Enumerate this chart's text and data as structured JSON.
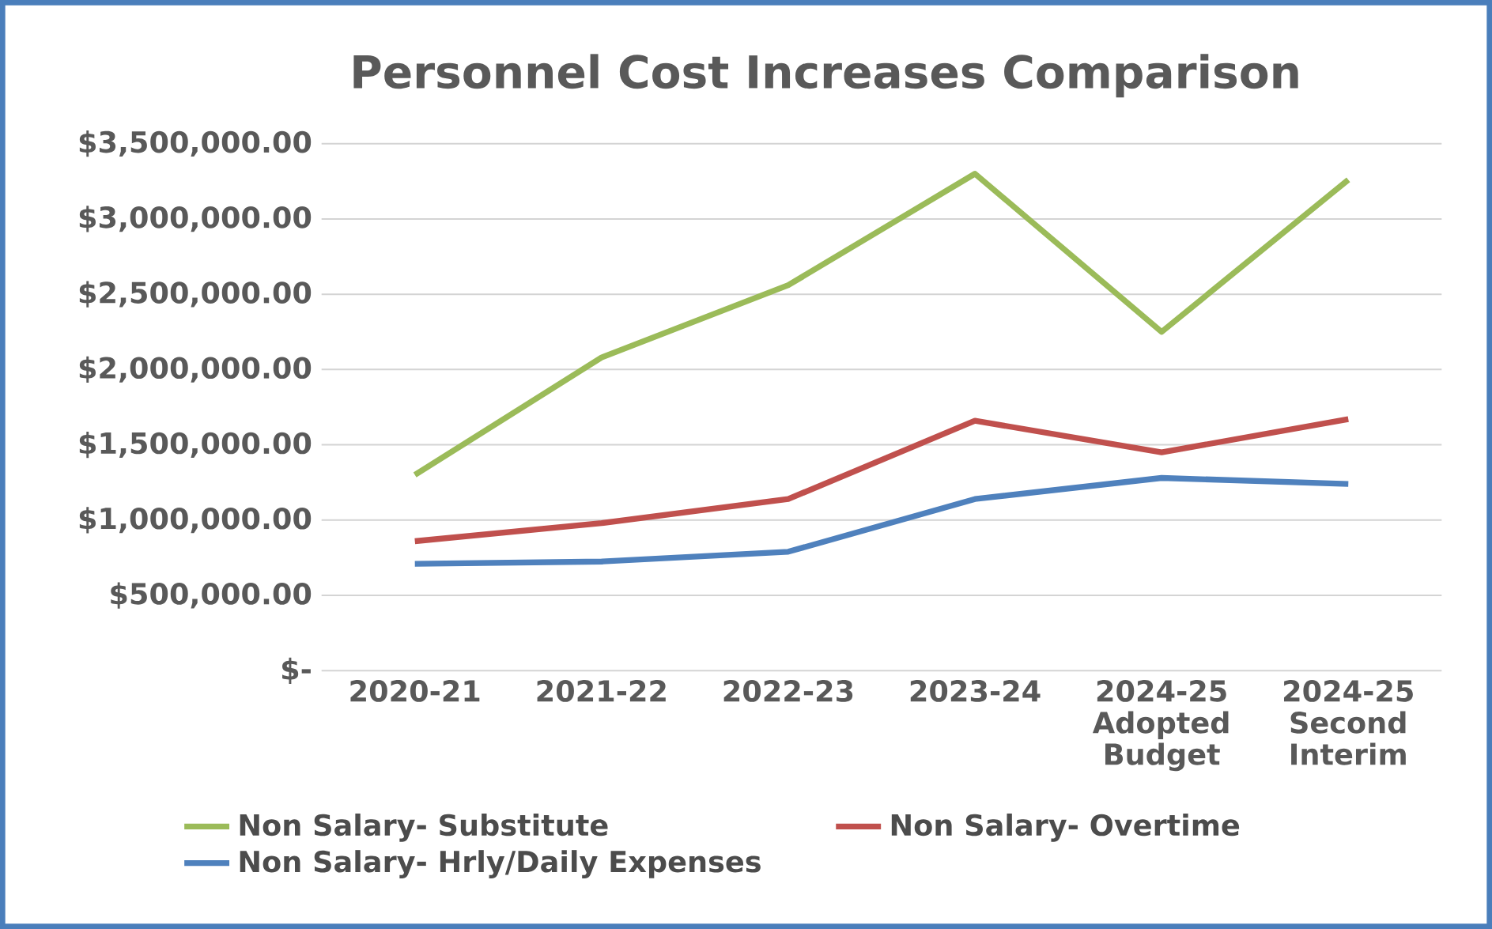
{
  "chart_data": {
    "type": "line",
    "title": "Personnel Cost  Increases Comparison",
    "categories": [
      "2020-21",
      "2021-22",
      "2022-23",
      "2023-24",
      "2024-25 Adopted Budget",
      "2024-25 Second Interim"
    ],
    "series": [
      {
        "name": "Non Salary- Substitute",
        "color": "#9bbb59",
        "values": [
          1300000,
          2080000,
          2560000,
          3300000,
          2250000,
          3260000
        ]
      },
      {
        "name": "Non Salary- Overtime",
        "color": "#c0504d",
        "values": [
          860000,
          980000,
          1140000,
          1660000,
          1450000,
          1670000
        ]
      },
      {
        "name": "Non Salary- Hrly/Daily Expenses",
        "color": "#4f81bd",
        "values": [
          710000,
          725000,
          790000,
          1140000,
          1280000,
          1240000
        ]
      }
    ],
    "ylim": [
      0,
      3500000
    ],
    "yticks": [
      {
        "value": 0,
        "label": "$-"
      },
      {
        "value": 500000,
        "label": "$500,000.00"
      },
      {
        "value": 1000000,
        "label": "$1,000,000.00"
      },
      {
        "value": 1500000,
        "label": "$1,500,000.00"
      },
      {
        "value": 2000000,
        "label": "$2,000,000.00"
      },
      {
        "value": 2500000,
        "label": "$2,500,000.00"
      },
      {
        "value": 3000000,
        "label": "$3,000,000.00"
      },
      {
        "value": 3500000,
        "label": "$3,500,000.00"
      }
    ],
    "grid": "y",
    "legend": "bottom",
    "marker": "none",
    "line_style": "solid"
  }
}
